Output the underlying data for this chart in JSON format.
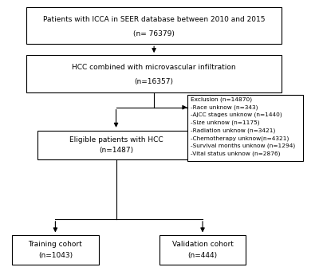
{
  "bg_color": "#ffffff",
  "box_color": "#ffffff",
  "box_edge_color": "#000000",
  "arrow_color": "#000000",
  "text_color": "#000000",
  "box1_text1": "Patients with ICCA in SEER database between 2010 and 2015",
  "box1_text2": "(n= 76379)",
  "box2_text1": "HCC combined with microvascular infiltration",
  "box2_text2": "(n=16357)",
  "box3_text": "Eligible patients with HCC\n(n=1487)",
  "box4_lines": [
    "Exclusion (n=14870)",
    "-Race unknow (n=343)",
    "-AJCC stages unknow (n=1440)",
    "-Size unknow (n=1175)",
    "-Radiation unknow (n=3421)",
    "-Chemotherapy unknow(n=4321)",
    "-Survival months unknow (n=1294)",
    "-Vital status unknow (n=2876)"
  ],
  "box5_text": "Training cohort\n(n=1043)",
  "box6_text": "Validation cohort\n(n=444)"
}
